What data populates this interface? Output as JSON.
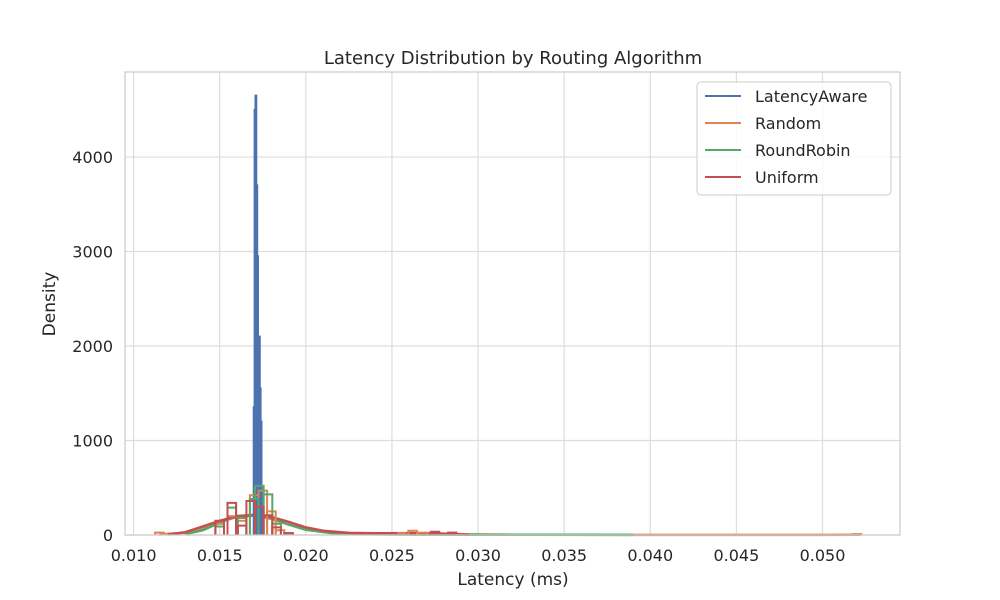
{
  "chart_data": {
    "type": "histogram",
    "title": "Latency Distribution by Routing Algorithm",
    "xlabel": "Latency (ms)",
    "ylabel": "Density",
    "xlim": [
      0.0095,
      0.0545
    ],
    "ylim": [
      0,
      4900
    ],
    "xticks": [
      0.01,
      0.015,
      0.02,
      0.025,
      0.03,
      0.035,
      0.04,
      0.045,
      0.05
    ],
    "xtick_labels": [
      "0.010",
      "0.015",
      "0.020",
      "0.025",
      "0.030",
      "0.035",
      "0.040",
      "0.045",
      "0.050"
    ],
    "yticks": [
      0,
      1000,
      2000,
      3000,
      4000
    ],
    "ytick_labels": [
      "0",
      "1000",
      "2000",
      "3000",
      "4000"
    ],
    "grid": true,
    "legend_position": "top-right",
    "series": [
      {
        "name": "LatencyAware",
        "color": "#4c72b0",
        "histogram": {
          "bins": [
            [
              0.017,
              1350
            ],
            [
              0.01705,
              4500
            ],
            [
              0.0171,
              4650
            ],
            [
              0.01715,
              3700
            ],
            [
              0.0172,
              2950
            ],
            [
              0.01725,
              1750
            ],
            [
              0.0173,
              2100
            ],
            [
              0.01735,
              1550
            ],
            [
              0.0174,
              1200
            ]
          ]
        }
      },
      {
        "name": "Random",
        "color": "#dd8452",
        "histogram": {
          "bins": [
            [
              0.0115,
              25
            ],
            [
              0.015,
              120
            ],
            [
              0.0157,
              200
            ],
            [
              0.0163,
              150
            ],
            [
              0.017,
              420
            ],
            [
              0.0175,
              470
            ],
            [
              0.018,
              250
            ],
            [
              0.0185,
              50
            ],
            [
              0.019,
              10
            ],
            [
              0.0255,
              20
            ],
            [
              0.0262,
              45
            ],
            [
              0.0268,
              25
            ],
            [
              0.052,
              10
            ]
          ]
        },
        "kde": {
          "x": [
            0.0115,
            0.013,
            0.014,
            0.015,
            0.016,
            0.017,
            0.018,
            0.019,
            0.02,
            0.0215,
            0.023,
            0.025,
            0.027,
            0.029,
            0.032,
            0.04,
            0.05,
            0.0522
          ],
          "y": [
            5,
            25,
            70,
            140,
            190,
            205,
            170,
            110,
            60,
            25,
            12,
            10,
            12,
            8,
            3,
            1,
            1,
            2
          ]
        }
      },
      {
        "name": "RoundRobin",
        "color": "#55a868",
        "histogram": {
          "bins": [
            [
              0.015,
              90
            ],
            [
              0.0157,
              290
            ],
            [
              0.0163,
              180
            ],
            [
              0.017,
              380
            ],
            [
              0.0173,
              520
            ],
            [
              0.0178,
              430
            ],
            [
              0.0183,
              120
            ],
            [
              0.019,
              20
            ],
            [
              0.034,
              5
            ],
            [
              0.035,
              5
            ],
            [
              0.0367,
              5
            ],
            [
              0.0385,
              5
            ]
          ]
        },
        "kde": {
          "x": [
            0.013,
            0.014,
            0.015,
            0.016,
            0.017,
            0.018,
            0.019,
            0.02,
            0.0215,
            0.023,
            0.026,
            0.03,
            0.035,
            0.039
          ],
          "y": [
            10,
            50,
            130,
            200,
            215,
            180,
            110,
            55,
            20,
            8,
            4,
            3,
            2,
            1
          ]
        }
      },
      {
        "name": "Uniform",
        "color": "#c44e52",
        "histogram": {
          "bins": [
            [
              0.015,
              150
            ],
            [
              0.0157,
              340
            ],
            [
              0.0163,
              100
            ],
            [
              0.0168,
              360
            ],
            [
              0.0173,
              300
            ],
            [
              0.0178,
              210
            ],
            [
              0.0183,
              80
            ],
            [
              0.019,
              20
            ],
            [
              0.023,
              15
            ],
            [
              0.025,
              20
            ],
            [
              0.0275,
              35
            ],
            [
              0.0285,
              25
            ]
          ]
        },
        "kde": {
          "x": [
            0.012,
            0.013,
            0.014,
            0.015,
            0.016,
            0.017,
            0.018,
            0.019,
            0.02,
            0.021,
            0.0225,
            0.024,
            0.026,
            0.028,
            0.0295
          ],
          "y": [
            5,
            30,
            90,
            150,
            200,
            210,
            190,
            140,
            80,
            45,
            22,
            18,
            20,
            15,
            3
          ]
        }
      }
    ]
  }
}
